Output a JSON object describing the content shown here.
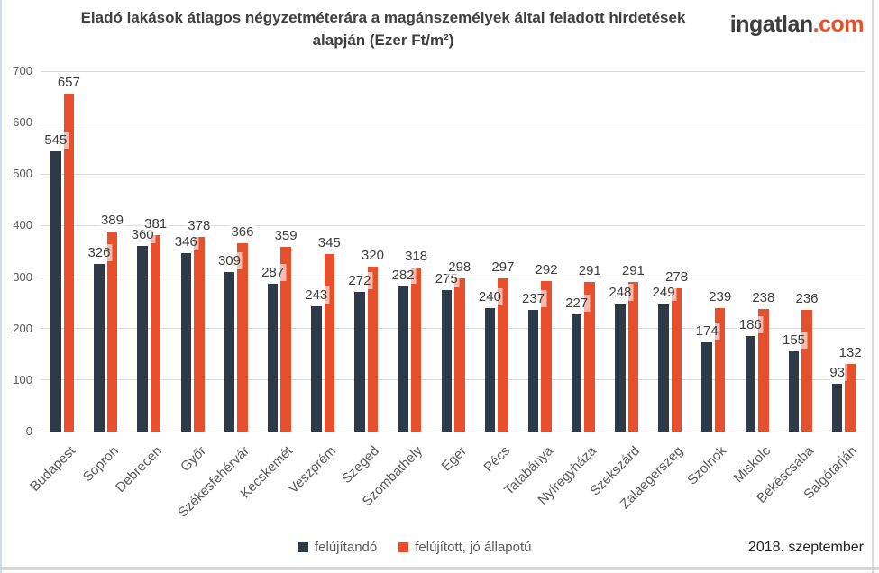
{
  "header": {
    "title_line1": "Eladó lakások átlagos négyzetméterára a magánszemélyek által feladott hirdetések",
    "title_line2": "alapján (Ezer Ft/m²)",
    "logo_name": "ingatlan",
    "logo_tld": ".com"
  },
  "footer": {
    "date_label": "2018. szeptember"
  },
  "colors": {
    "series_dark": "#2f3a49",
    "series_orange": "#e8502d",
    "gridline": "#d9d9d9",
    "axis_text": "#595959",
    "logo_accent": "#e8502d"
  },
  "chart_data": {
    "type": "bar",
    "title": "Eladó lakások átlagos négyzetméterára a magánszemélyek által feladott hirdetések alapján (Ezer Ft/m²)",
    "categories": [
      "Budapest",
      "Sopron",
      "Debrecen",
      "Győr",
      "Székesfehérvár",
      "Kecskemét",
      "Veszprém",
      "Szeged",
      "Szombathely",
      "Eger",
      "Pécs",
      "Tatabánya",
      "Nyíregyháza",
      "Szekszárd",
      "Zalaegerszeg",
      "Szolnok",
      "Miskolc",
      "Békéscsaba",
      "Salgótarján"
    ],
    "series": [
      {
        "name": "felújítandó",
        "color": "#2f3a49",
        "values": [
          545,
          326,
          360,
          346,
          309,
          287,
          243,
          272,
          282,
          275,
          240,
          237,
          227,
          248,
          249,
          174,
          186,
          155,
          93
        ]
      },
      {
        "name": "felújított, jó állapotú",
        "color": "#e8502d",
        "values": [
          657,
          389,
          381,
          378,
          366,
          359,
          345,
          320,
          318,
          298,
          297,
          292,
          291,
          291,
          278,
          239,
          238,
          236,
          132
        ]
      }
    ],
    "xlabel": "",
    "ylabel": "",
    "ylim": [
      0,
      700
    ],
    "yticks": [
      0,
      100,
      200,
      300,
      400,
      500,
      600,
      700
    ],
    "grid": true,
    "legend_position": "bottom",
    "value_labels": true
  }
}
